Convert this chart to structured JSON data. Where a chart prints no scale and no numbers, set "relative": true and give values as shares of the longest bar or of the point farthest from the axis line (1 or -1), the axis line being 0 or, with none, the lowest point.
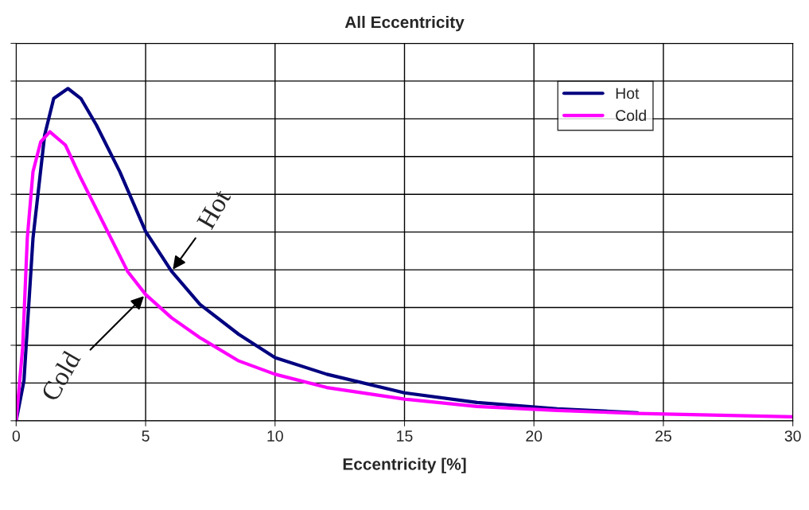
{
  "chart_data": {
    "type": "line",
    "title": "All Eccentricity",
    "xlabel": "Eccentricity [%]",
    "relative": true,
    "xlim": [
      0,
      30
    ],
    "xticks": [
      0,
      5,
      10,
      15,
      20,
      25,
      30
    ],
    "grid": true,
    "legend": "top right",
    "marker": "none",
    "line_style": "solid",
    "series": [
      {
        "name": "Hot",
        "color": "#000080",
        "x": [
          0,
          0.3,
          0.65,
          1.1,
          1.45,
          2.0,
          2.5,
          3.1,
          4.0,
          5.0,
          6.0,
          7.1,
          8.6,
          10,
          12,
          15,
          17.8,
          20.9,
          24
        ],
        "values": [
          0,
          0.12,
          0.55,
          0.86,
          0.97,
          1.0,
          0.97,
          0.89,
          0.75,
          0.57,
          0.45,
          0.35,
          0.26,
          0.19,
          0.14,
          0.084,
          0.055,
          0.036,
          0.024
        ]
      },
      {
        "name": "Cold",
        "color": "#ff00ff",
        "x": [
          0,
          0.25,
          0.43,
          0.65,
          0.95,
          1.3,
          1.9,
          2.5,
          3.4,
          4.3,
          5.0,
          6.0,
          7.1,
          8.6,
          10,
          12,
          15,
          17.8,
          20.9,
          24,
          30
        ],
        "values": [
          0,
          0.22,
          0.55,
          0.75,
          0.84,
          0.87,
          0.83,
          0.73,
          0.59,
          0.45,
          0.38,
          0.31,
          0.25,
          0.18,
          0.14,
          0.1,
          0.065,
          0.043,
          0.031,
          0.022,
          0.012
        ]
      }
    ],
    "annotations": [
      {
        "text": "Hot",
        "x": 6.0,
        "y": 0.45
      },
      {
        "text": "Cold",
        "x": 5.0,
        "y": 0.38
      }
    ]
  }
}
